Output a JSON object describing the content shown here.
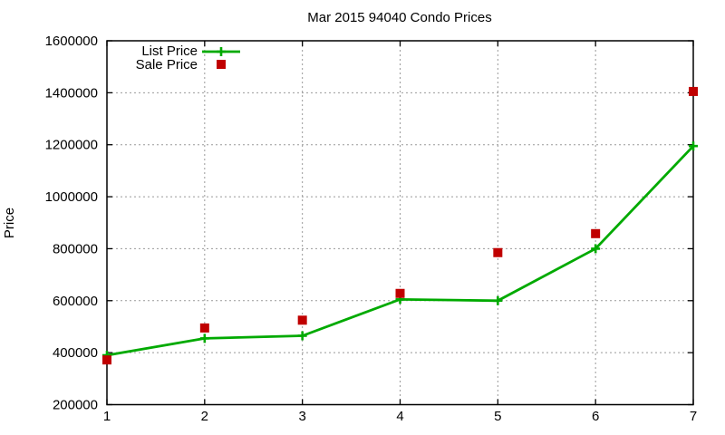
{
  "title": "Mar 2015 94040 Condo Prices",
  "ylabel": "Price",
  "chart_data": {
    "type": "line",
    "x": [
      1,
      2,
      3,
      4,
      5,
      6,
      7
    ],
    "series": [
      {
        "name": "List Price",
        "type": "line",
        "marker": "plus",
        "color": "#00aa00",
        "values": [
          390000,
          455000,
          465000,
          605000,
          600000,
          800000,
          1195000
        ]
      },
      {
        "name": "Sale Price",
        "type": "scatter",
        "marker": "square",
        "color": "#c00000",
        "values": [
          372000,
          495000,
          525000,
          628000,
          785000,
          858000,
          1405000
        ]
      }
    ],
    "xlim": [
      1,
      7
    ],
    "ylim": [
      200000,
      1600000
    ],
    "xticks": [
      1,
      2,
      3,
      4,
      5,
      6,
      7
    ],
    "yticks": [
      200000,
      400000,
      600000,
      800000,
      1000000,
      1200000,
      1400000,
      1600000
    ],
    "grid": true,
    "grid_color": "#999999",
    "border_color": "#000000",
    "legend_position": "top-left"
  }
}
